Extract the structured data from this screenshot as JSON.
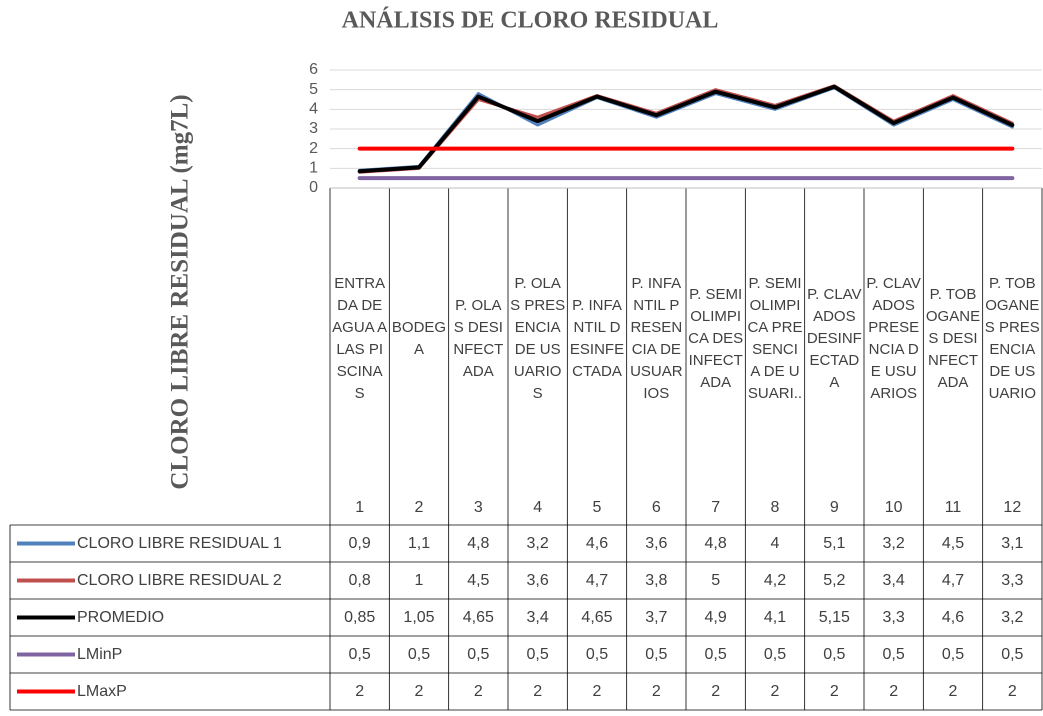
{
  "chart_data": {
    "type": "line",
    "title": "ANÁLISIS DE CLORO RESIDUAL",
    "y_label": "CLORO LIBRE RESIDUAL (mg7L)",
    "categories": [
      "ENTRADA DE AGUA A LAS PISCINAS",
      "BODEGA",
      "P. OLAS DESINFECTADA",
      "P. OLAS PRESENCIA DE USUARIOS",
      "P. INFANTIL DESINFECTADA",
      "P. INFANTIL PRESENCIA DE USUARIOS",
      "P. SEMIOLIMPICA DESINFECTADA",
      "P. SEMIOLIMPICA PRESENCIA DE USUARI..",
      "P. CLAVADOS DESINFECTADA",
      "P. CLAVADOS PRESENCIA DE USUARIOS",
      "P. TOBOGANES DESINFECTADA",
      "P. TOBOGANES PRESENCIA DE USUARIO"
    ],
    "category_numbers": [
      1,
      2,
      3,
      4,
      5,
      6,
      7,
      8,
      9,
      10,
      11,
      12
    ],
    "series": [
      {
        "name": "CLORO LIBRE RESIDUAL 1",
        "color": "#4f81bd",
        "values": [
          0.9,
          1.1,
          4.8,
          3.2,
          4.6,
          3.6,
          4.8,
          4,
          5.1,
          3.2,
          4.5,
          3.1
        ],
        "value_labels": [
          "0,9",
          "1,1",
          "4,8",
          "3,2",
          "4,6",
          "3,6",
          "4,8",
          "4",
          "5,1",
          "3,2",
          "4,5",
          "3,1"
        ]
      },
      {
        "name": "CLORO LIBRE RESIDUAL 2",
        "color": "#c0504d",
        "values": [
          0.8,
          1,
          4.5,
          3.6,
          4.7,
          3.8,
          5,
          4.2,
          5.2,
          3.4,
          4.7,
          3.3
        ],
        "value_labels": [
          "0,8",
          "1",
          "4,5",
          "3,6",
          "4,7",
          "3,8",
          "5",
          "4,2",
          "5,2",
          "3,4",
          "4,7",
          "3,3"
        ]
      },
      {
        "name": "PROMEDIO",
        "color": "#000000",
        "values": [
          0.85,
          1.05,
          4.65,
          3.4,
          4.65,
          3.7,
          4.9,
          4.1,
          5.15,
          3.3,
          4.6,
          3.2
        ],
        "value_labels": [
          "0,85",
          "1,05",
          "4,65",
          "3,4",
          "4,65",
          "3,7",
          "4,9",
          "4,1",
          "5,15",
          "3,3",
          "4,6",
          "3,2"
        ]
      },
      {
        "name": "LMinP",
        "color": "#8064a2",
        "values": [
          0.5,
          0.5,
          0.5,
          0.5,
          0.5,
          0.5,
          0.5,
          0.5,
          0.5,
          0.5,
          0.5,
          0.5
        ],
        "value_labels": [
          "0,5",
          "0,5",
          "0,5",
          "0,5",
          "0,5",
          "0,5",
          "0,5",
          "0,5",
          "0,5",
          "0,5",
          "0,5",
          "0,5"
        ]
      },
      {
        "name": "LMaxP",
        "color": "#ff0000",
        "values": [
          2,
          2,
          2,
          2,
          2,
          2,
          2,
          2,
          2,
          2,
          2,
          2
        ],
        "value_labels": [
          "2",
          "2",
          "2",
          "2",
          "2",
          "2",
          "2",
          "2",
          "2",
          "2",
          "2",
          "2"
        ]
      }
    ],
    "ylim": [
      0,
      6
    ],
    "yticks": [
      0,
      1,
      2,
      3,
      4,
      5,
      6
    ],
    "grid": true
  }
}
